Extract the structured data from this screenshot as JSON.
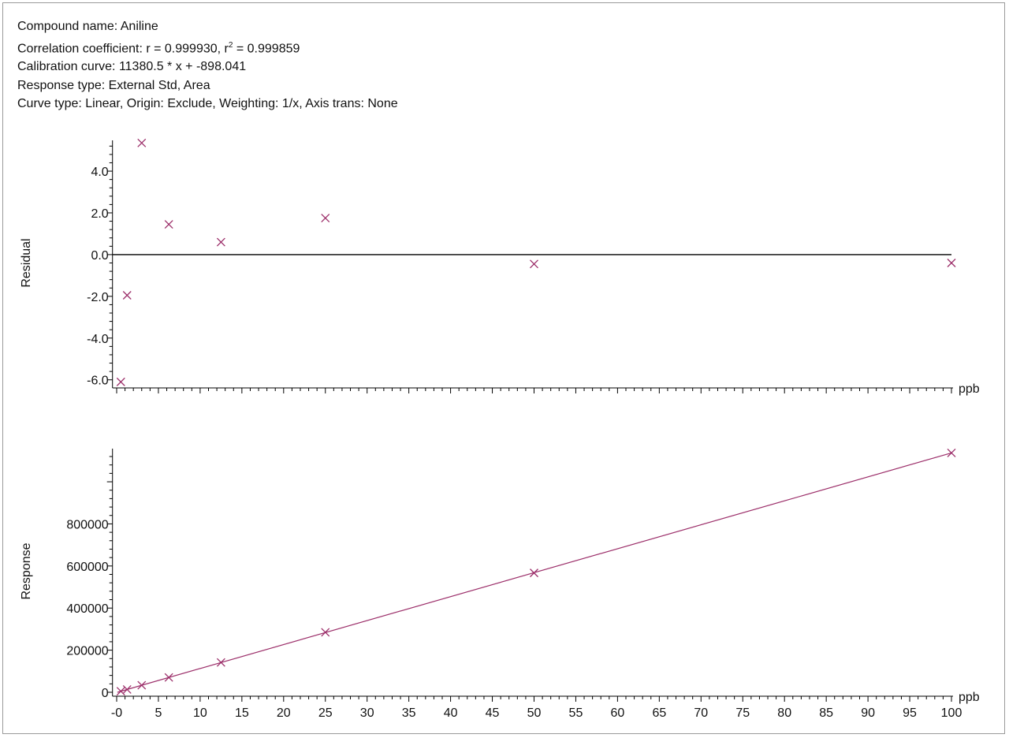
{
  "header": {
    "line1": "Compound name: Aniline",
    "line2_prefix": "Correlation coefficient: r = 0.999930, r",
    "line2_sup": "2",
    "line2_suffix": " = 0.999859",
    "line3": "Calibration curve: 11380.5 * x + -898.041",
    "line4": "Response type: External Std, Area",
    "line5": "Curve type: Linear, Origin: Exclude, Weighting: 1/x, Axis trans: None"
  },
  "colors": {
    "marker": "#9c2f6a",
    "fit_line": "#9c2f6a",
    "axis": "#000000"
  },
  "chart_data": [
    {
      "type": "scatter",
      "ylabel": "Residual",
      "xunit": "ppb",
      "xlim": [
        -0.5,
        100
      ],
      "ylim": [
        -6.2,
        5.4
      ],
      "yticks": [
        4.0,
        2.0,
        0.0,
        -2.0,
        -4.0,
        -6.0
      ],
      "ytick_labels": [
        "4.0",
        "2.0",
        "0.0",
        "-2.0",
        "-4.0",
        "-6.0"
      ],
      "zero_line": true,
      "marker": "x",
      "points": [
        {
          "x": 0.5,
          "y": -6.1
        },
        {
          "x": 1.25,
          "y": -1.95
        },
        {
          "x": 3.0,
          "y": 5.35
        },
        {
          "x": 6.25,
          "y": 1.45
        },
        {
          "x": 12.5,
          "y": 0.6
        },
        {
          "x": 25,
          "y": 1.75
        },
        {
          "x": 50,
          "y": -0.45
        },
        {
          "x": 100,
          "y": -0.4
        }
      ]
    },
    {
      "type": "scatter",
      "ylabel": "Response",
      "xunit": "ppb",
      "xlim": [
        -0.5,
        100
      ],
      "ylim": [
        0,
        1150000
      ],
      "yticks": [
        800000,
        600000,
        400000,
        200000,
        0
      ],
      "ytick_labels": [
        "800000",
        "600000",
        "400000",
        "200000",
        "0"
      ],
      "xticks": [
        0,
        5,
        10,
        15,
        20,
        25,
        30,
        35,
        40,
        45,
        50,
        55,
        60,
        65,
        70,
        75,
        80,
        85,
        90,
        95,
        100
      ],
      "xtick_labels": [
        "-0",
        "5",
        "10",
        "15",
        "20",
        "25",
        "30",
        "35",
        "40",
        "45",
        "50",
        "55",
        "60",
        "65",
        "70",
        "75",
        "80",
        "85",
        "90",
        "95",
        "100"
      ],
      "marker": "x",
      "fit": {
        "slope": 11380.5,
        "intercept": -898.041
      },
      "points": [
        {
          "x": 0.5,
          "y": 4800
        },
        {
          "x": 1.25,
          "y": 13200
        },
        {
          "x": 3.0,
          "y": 33500
        },
        {
          "x": 6.25,
          "y": 70500
        },
        {
          "x": 12.5,
          "y": 141500
        },
        {
          "x": 25,
          "y": 285000
        },
        {
          "x": 50,
          "y": 567000
        },
        {
          "x": 100,
          "y": 1137000
        }
      ]
    }
  ]
}
